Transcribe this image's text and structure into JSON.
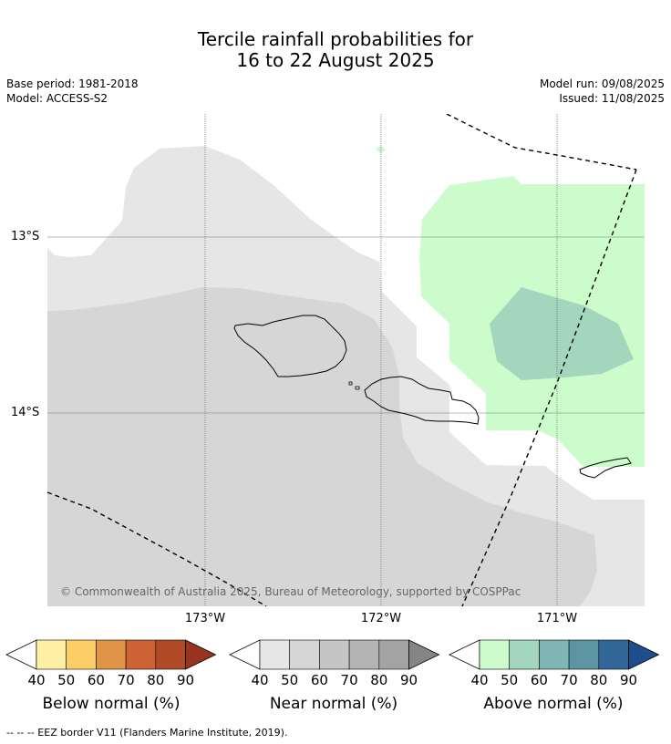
{
  "title": {
    "line1": "Tercile rainfall probabilities for",
    "line2": "16 to 22 August 2025"
  },
  "meta": {
    "base_period": "Base period: 1981-2018",
    "model": "Model: ACCESS-S2",
    "model_run": "Model run: 09/08/2025",
    "issued": "Issued: 11/08/2025"
  },
  "map": {
    "longitude_labels": [
      "173°W",
      "172°W",
      "171°W"
    ],
    "latitude_labels": [
      "13°S",
      "14°S"
    ],
    "copyright": "© Commonwealth of Australia 2025, Bureau of Meteorology, supported by COSPPac",
    "regions": [
      {
        "category": "Near normal",
        "band": "40-50"
      },
      {
        "category": "Near normal",
        "band": "50-60"
      },
      {
        "category": "Above normal",
        "band": "40-50"
      },
      {
        "category": "Above normal",
        "band": "50-60"
      }
    ]
  },
  "colorbars": [
    {
      "name": "Below normal (%)",
      "ticks": [
        "40",
        "50",
        "60",
        "70",
        "80",
        "90"
      ],
      "colors": [
        "#fff0a4",
        "#fdcd66",
        "#e09448",
        "#cd6334",
        "#b04a27",
        "#99341f"
      ]
    },
    {
      "name": "Near normal (%)",
      "ticks": [
        "40",
        "50",
        "60",
        "70",
        "80",
        "90"
      ],
      "colors": [
        "#e6e6e6",
        "#d6d6d6",
        "#c5c5c5",
        "#b4b4b4",
        "#a3a3a3",
        "#858585"
      ]
    },
    {
      "name": "Above normal (%)",
      "ticks": [
        "40",
        "50",
        "60",
        "70",
        "80",
        "90"
      ],
      "colors": [
        "#ccfccc",
        "#a3d6bd",
        "#7fb5b2",
        "#5d95a2",
        "#346799",
        "#1e4d8c"
      ]
    }
  ],
  "footer": "--  --  -- EEZ border V11 (Flanders Marine Institute, 2019)."
}
